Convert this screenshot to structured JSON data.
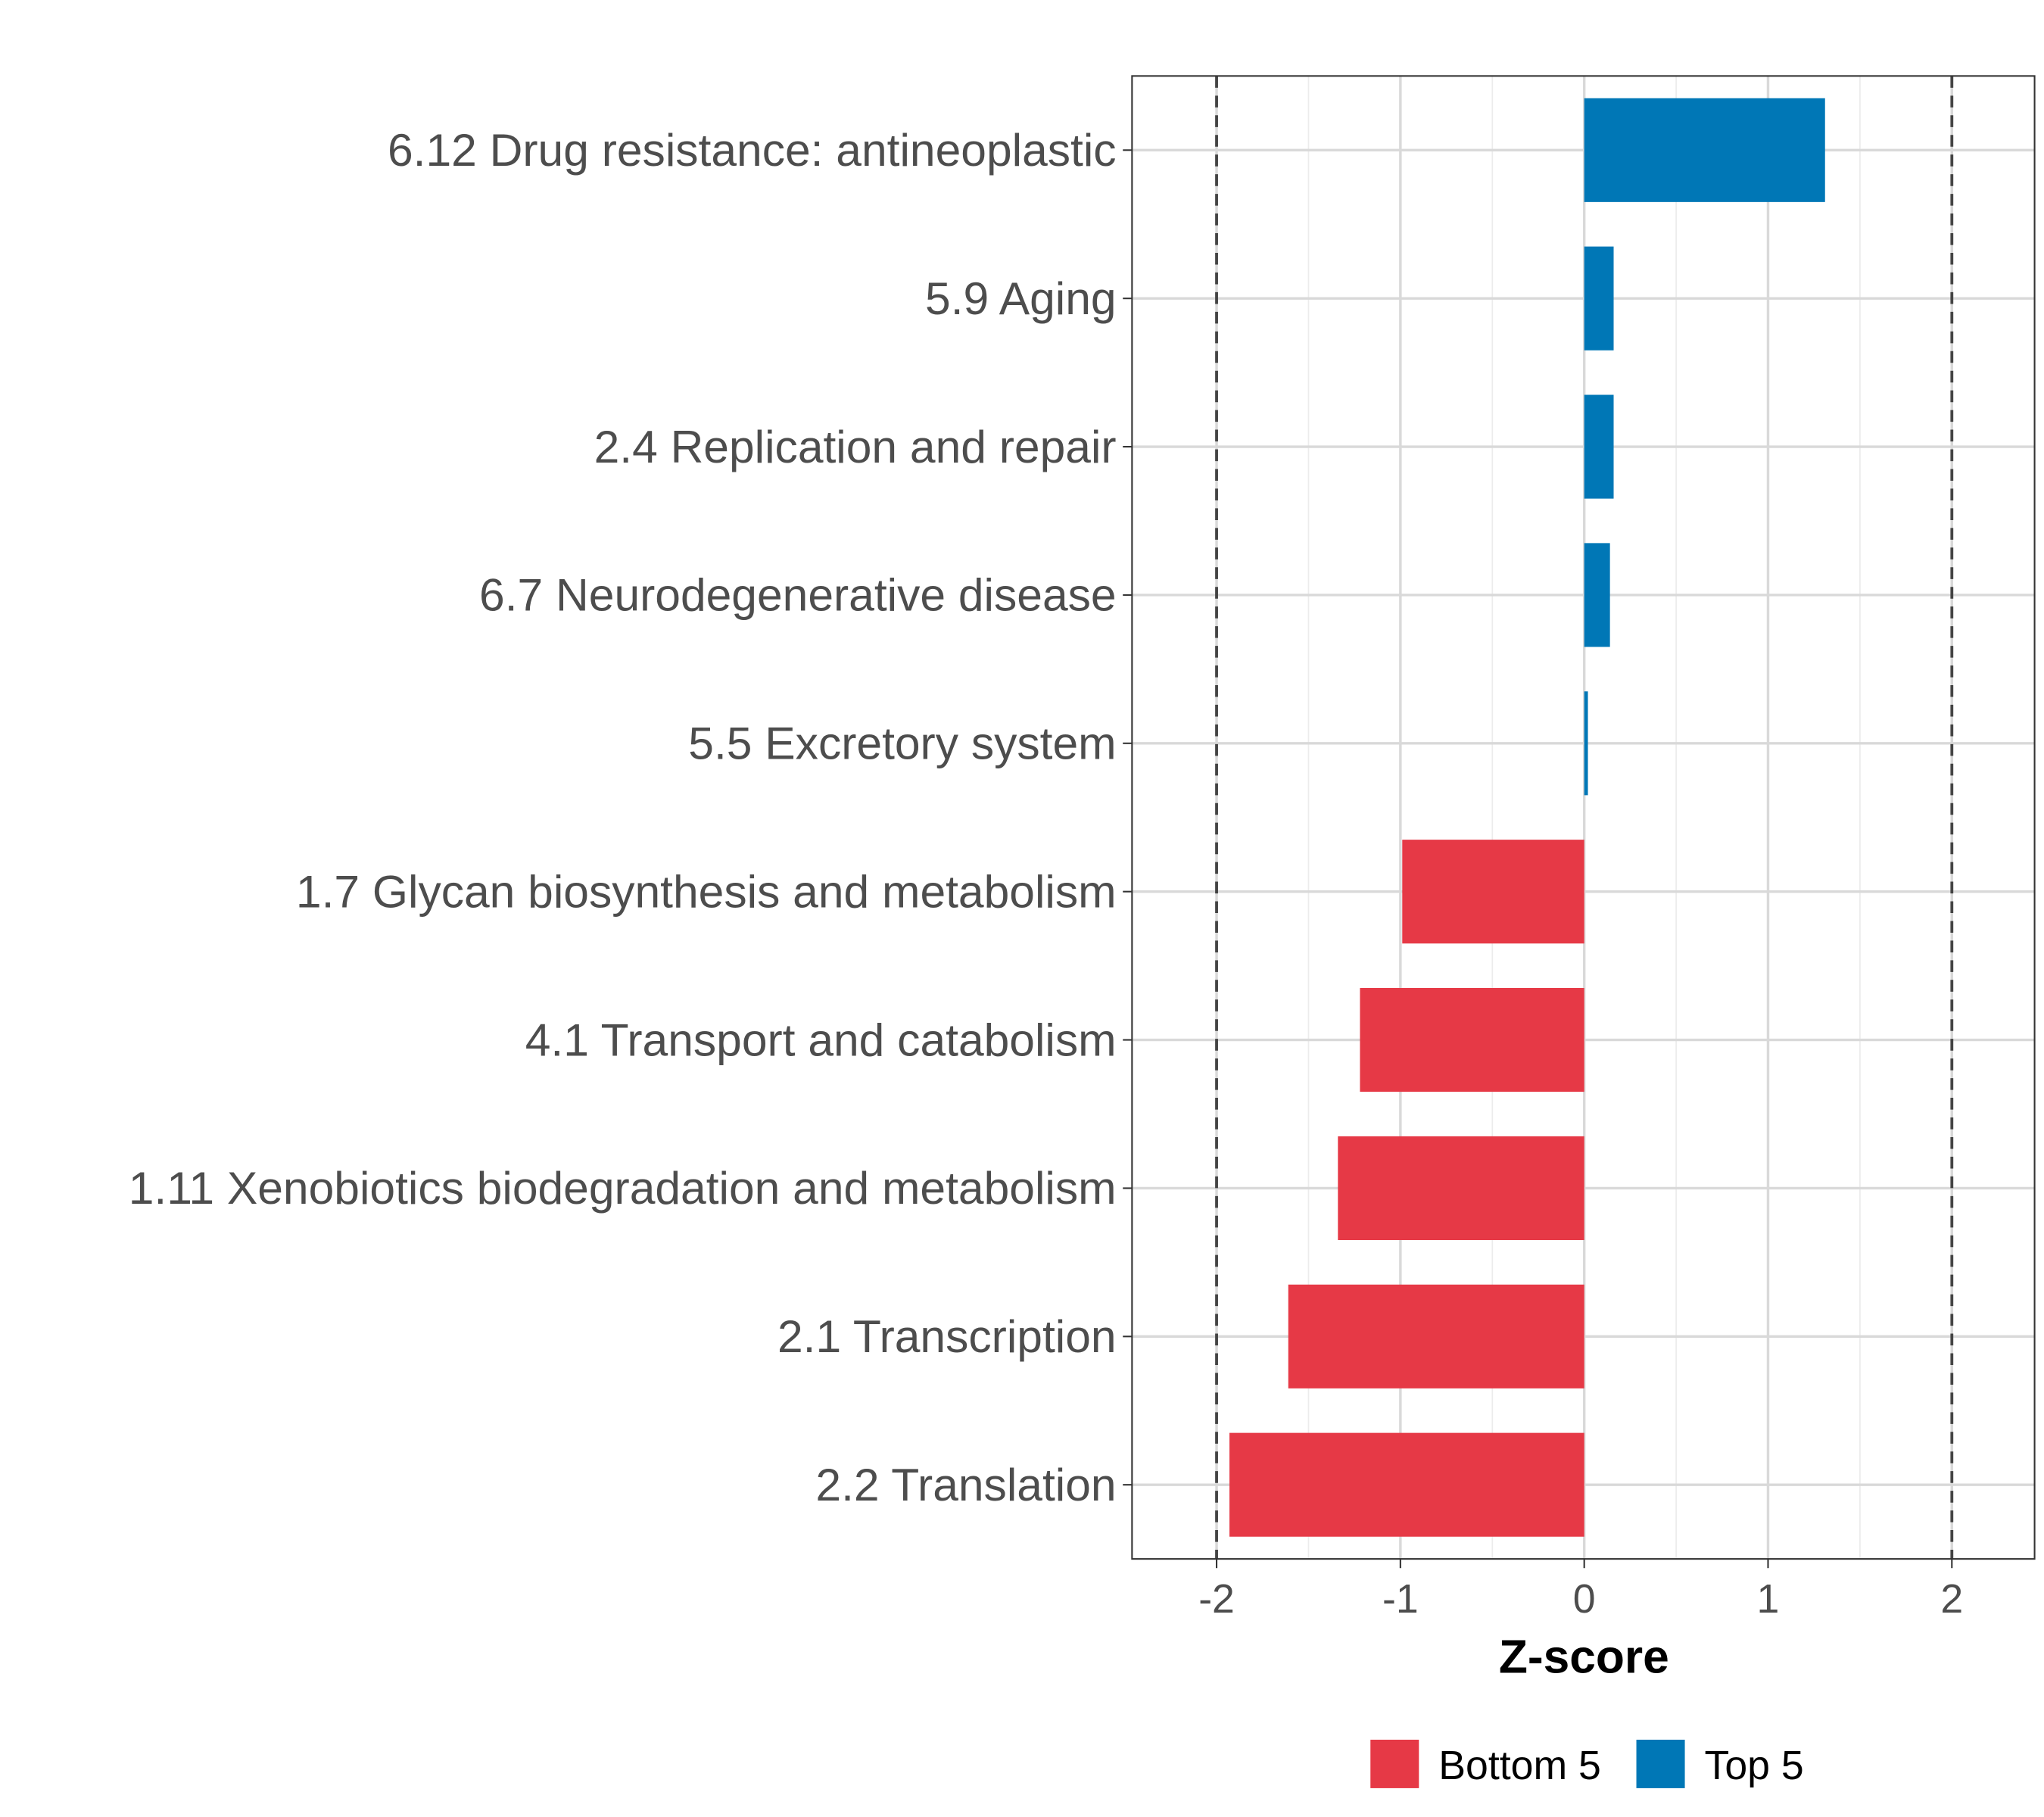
{
  "chart_data": {
    "type": "bar",
    "orientation": "horizontal",
    "title": "",
    "xlabel": "Z-score",
    "ylabel": "",
    "xlim": [
      -2.46,
      2.45
    ],
    "xticks": [
      -2,
      -1,
      0,
      1,
      2
    ],
    "xtick_labels": [
      "-2",
      "-1",
      "0",
      "1",
      "2"
    ],
    "reference_lines": [
      -2,
      2
    ],
    "grid": true,
    "legend_position": "bottom",
    "legend": [
      {
        "name": "Bottom 5",
        "color": "#E63946"
      },
      {
        "name": "Top 5",
        "color": "#0077B6"
      }
    ],
    "categories": [
      "6.12 Drug resistance: antineoplastic",
      "5.9 Aging",
      "2.4 Replication and repair",
      "6.7 Neurodegenerative disease",
      "5.5 Excretory system",
      "1.7 Glycan biosynthesis and metabolism",
      "4.1 Transport and catabolism",
      "1.11 Xenobiotics biodegradation and metabolism",
      "2.1 Transcription",
      "2.2 Translation"
    ],
    "values": [
      1.31,
      0.16,
      0.16,
      0.14,
      0.02,
      -0.99,
      -1.22,
      -1.34,
      -1.61,
      -1.93
    ],
    "groups": [
      "Top 5",
      "Top 5",
      "Top 5",
      "Top 5",
      "Top 5",
      "Bottom 5",
      "Bottom 5",
      "Bottom 5",
      "Bottom 5",
      "Bottom 5"
    ]
  }
}
